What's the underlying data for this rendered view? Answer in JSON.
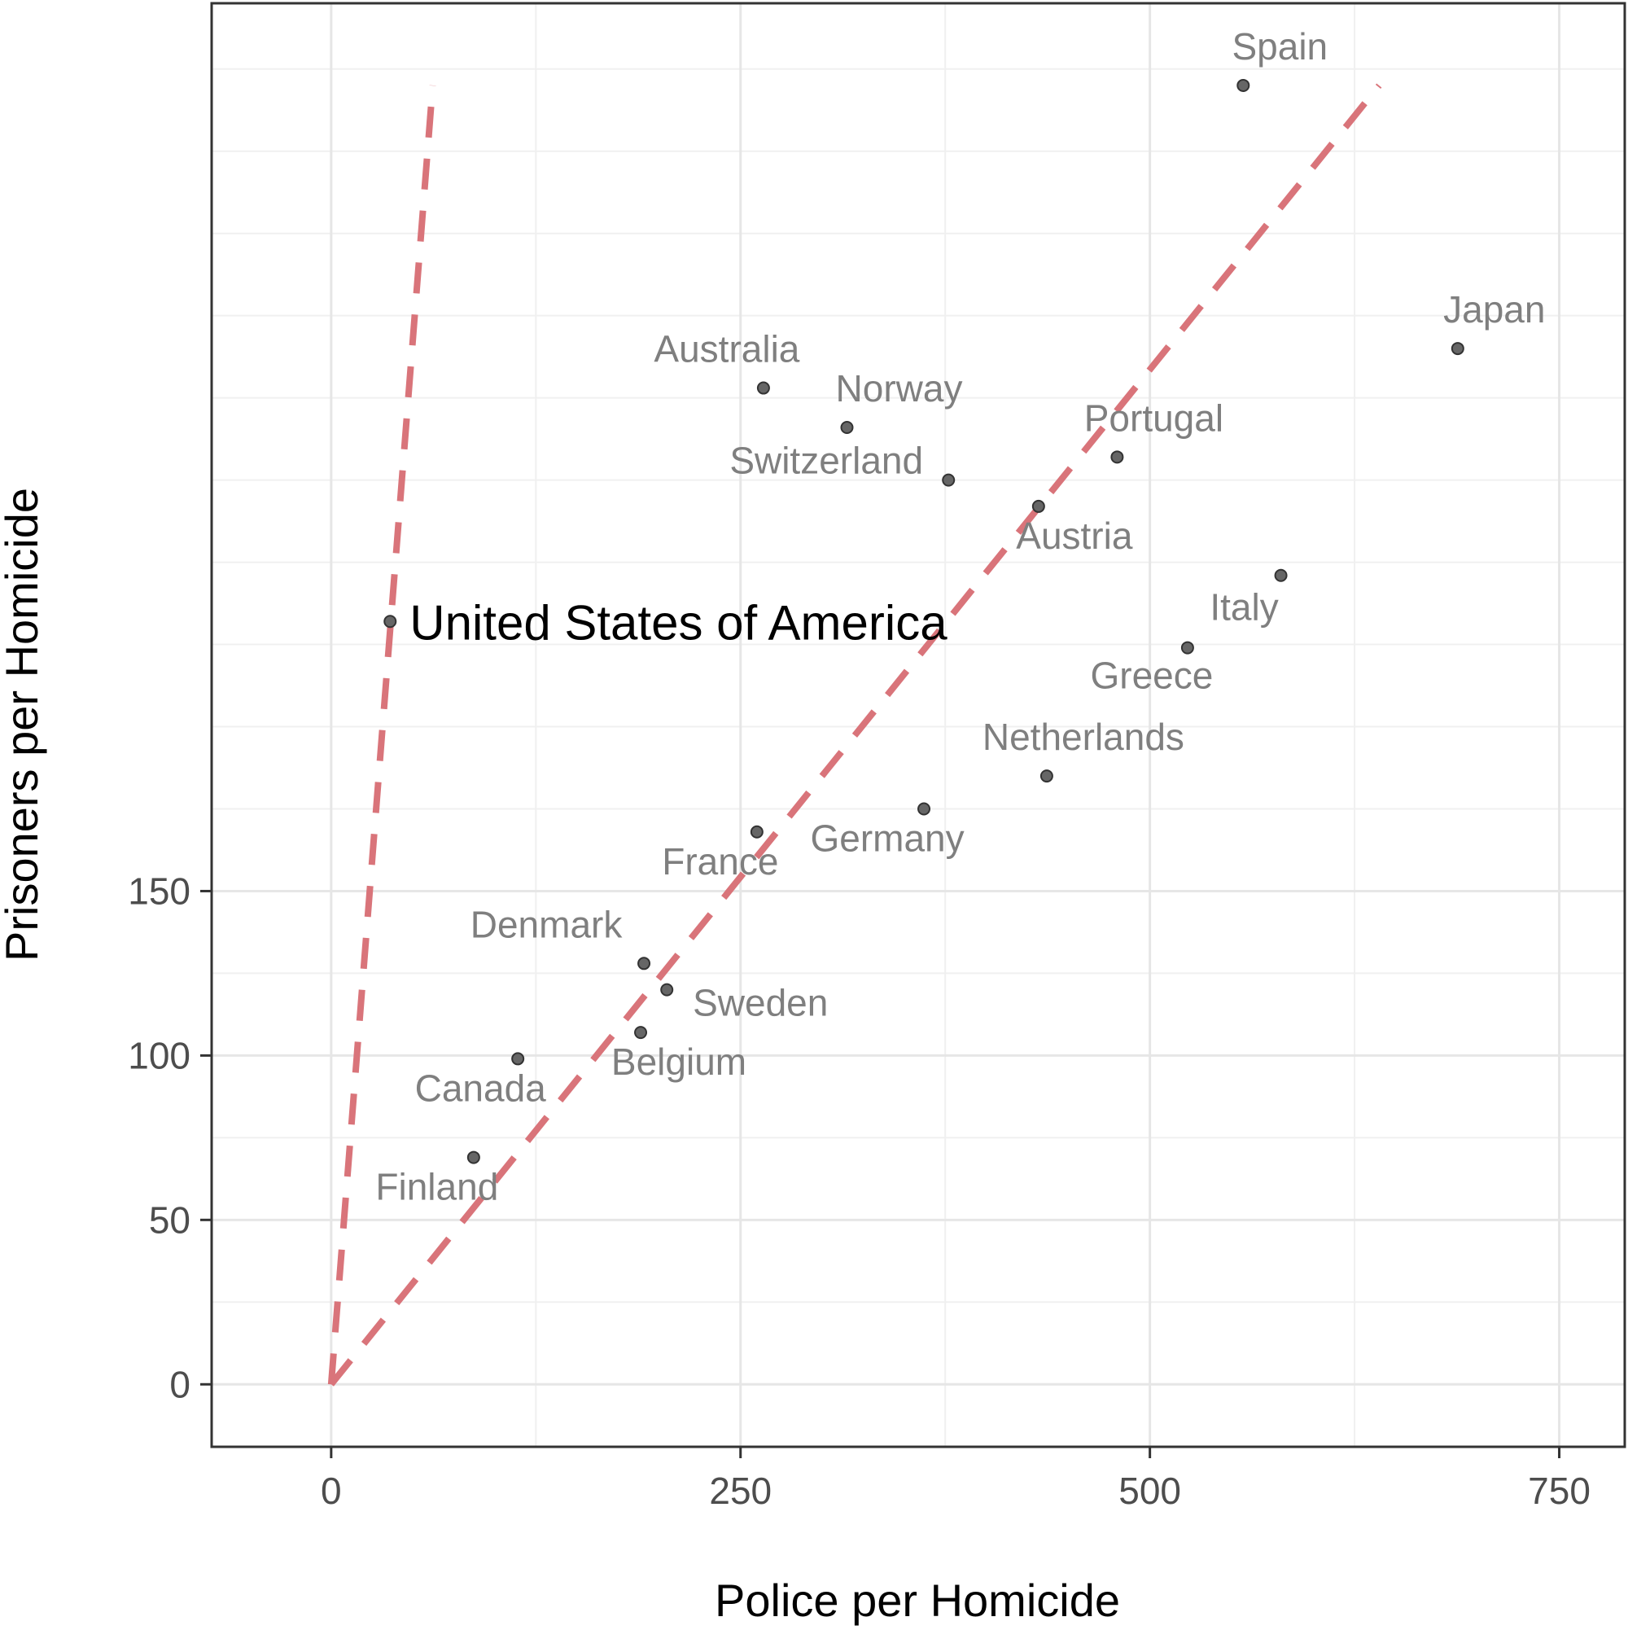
{
  "chart_data": {
    "type": "scatter",
    "title": "",
    "xlabel": "Police per Homicide",
    "ylabel": "Prisoners per Homicide",
    "xlim": [
      -73,
      790
    ],
    "ylim": [
      -19,
      420
    ],
    "x_ticks": [
      0,
      250,
      500,
      750
    ],
    "x_tick_labels": [
      "0",
      "250",
      "500",
      "750"
    ],
    "y_ticks": [
      0,
      50,
      100,
      150
    ],
    "y_tick_labels": [
      "0",
      "50",
      "100",
      "150"
    ],
    "y_minor_grid": [
      25,
      75,
      125,
      175,
      200,
      225,
      250,
      275,
      300,
      325,
      350,
      375,
      400
    ],
    "x_minor_grid": [
      125,
      375,
      625
    ],
    "grid": true,
    "point_color": "#666666",
    "label_color": "#7f7f7f",
    "highlight_color": "#000000",
    "reference_line_color": "#d9747a",
    "points": [
      {
        "name": "Spain",
        "x": 557,
        "y": 395
      },
      {
        "name": "Japan",
        "x": 688,
        "y": 315
      },
      {
        "name": "Australia",
        "x": 264,
        "y": 303
      },
      {
        "name": "Norway",
        "x": 315,
        "y": 291
      },
      {
        "name": "Portugal",
        "x": 480,
        "y": 282
      },
      {
        "name": "Switzerland",
        "x": 377,
        "y": 275
      },
      {
        "name": "Austria",
        "x": 432,
        "y": 267
      },
      {
        "name": "Italy",
        "x": 580,
        "y": 246
      },
      {
        "name": "United States of America",
        "x": 36,
        "y": 232,
        "highlight": true
      },
      {
        "name": "Greece",
        "x": 523,
        "y": 224
      },
      {
        "name": "Netherlands",
        "x": 437,
        "y": 185
      },
      {
        "name": "Germany",
        "x": 362,
        "y": 175
      },
      {
        "name": "France",
        "x": 260,
        "y": 168
      },
      {
        "name": "Denmark",
        "x": 191,
        "y": 128
      },
      {
        "name": "Sweden",
        "x": 205,
        "y": 120
      },
      {
        "name": "Belgium",
        "x": 189,
        "y": 107
      },
      {
        "name": "Canada",
        "x": 114,
        "y": 99
      },
      {
        "name": "Finland",
        "x": 87,
        "y": 69
      }
    ],
    "reference_lines": [
      {
        "x": [
          0,
          62
        ],
        "y": [
          0,
          395
        ]
      },
      {
        "x": [
          0,
          640
        ],
        "y": [
          0,
          395
        ]
      }
    ]
  }
}
